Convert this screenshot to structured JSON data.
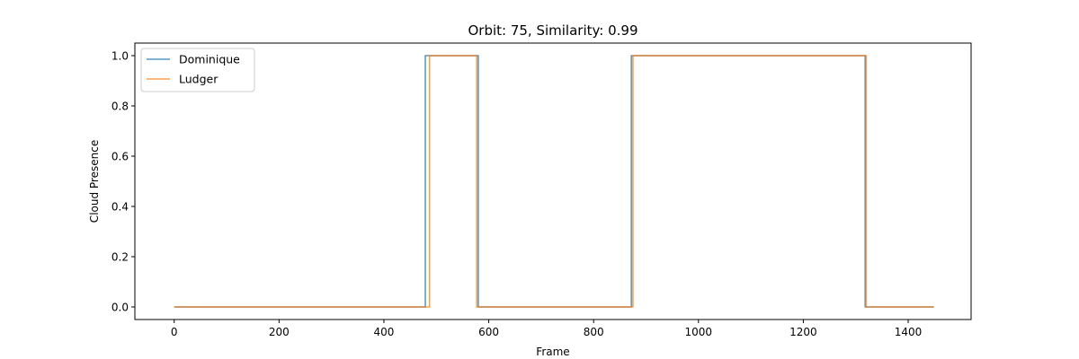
{
  "chart_data": {
    "type": "line",
    "title": "Orbit: 75, Similarity: 0.99",
    "xlabel": "Frame",
    "ylabel": "Cloud Presence",
    "xlim": [
      -75,
      1520
    ],
    "ylim": [
      -0.05,
      1.05
    ],
    "xticks": [
      0,
      200,
      400,
      600,
      800,
      1000,
      1200,
      1400
    ],
    "yticks": [
      0.0,
      0.2,
      0.4,
      0.6,
      0.8,
      1.0
    ],
    "xtick_labels": [
      "0",
      "200",
      "400",
      "600",
      "800",
      "1000",
      "1200",
      "1400"
    ],
    "ytick_labels": [
      "0.0",
      "0.2",
      "0.4",
      "0.6",
      "0.8",
      "1.0"
    ],
    "grid": false,
    "legend_position": "top-left",
    "series": [
      {
        "name": "Dominique",
        "color": "#1f77b4",
        "x": [
          0,
          479,
          479,
          580,
          580,
          872,
          872,
          1318,
          1318,
          1449
        ],
        "y": [
          0,
          0,
          1,
          1,
          0,
          0,
          1,
          1,
          0,
          0
        ]
      },
      {
        "name": "Ludger",
        "color": "#ff7f0e",
        "x": [
          0,
          487,
          487,
          577,
          577,
          875,
          875,
          1320,
          1320,
          1449
        ],
        "y": [
          0,
          0,
          1,
          1,
          0,
          0,
          1,
          1,
          0,
          0
        ]
      }
    ]
  }
}
